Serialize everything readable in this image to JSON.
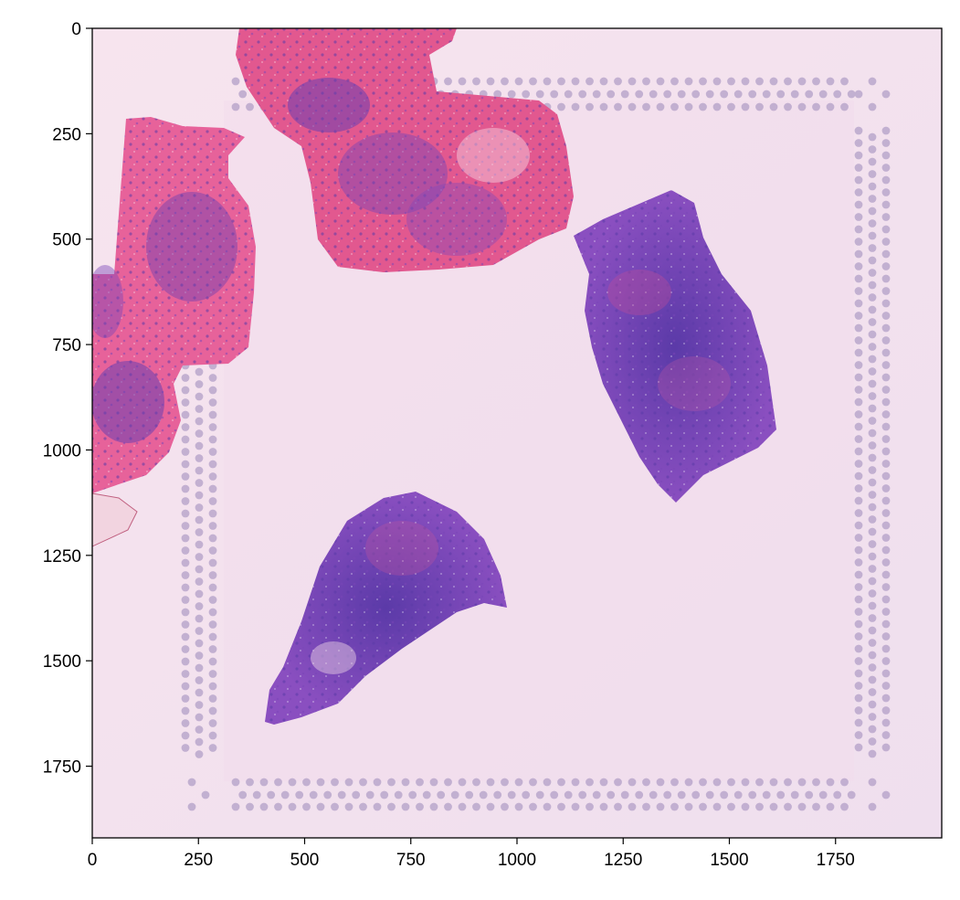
{
  "figure": {
    "x_ticks": [
      "0",
      "250",
      "500",
      "750",
      "1000",
      "1250",
      "1500",
      "1750"
    ],
    "y_ticks": [
      "0",
      "250",
      "500",
      "750",
      "1000",
      "1250",
      "1500",
      "1750"
    ],
    "x_range": [
      0,
      2000
    ],
    "y_range": [
      1920,
      0
    ],
    "image_description_colors": {
      "background": "#f6e3ee",
      "tissue_pink": "#e0508a",
      "tissue_purple": "#6a45b5",
      "fiducial_spots": "#b9a8cc"
    }
  }
}
